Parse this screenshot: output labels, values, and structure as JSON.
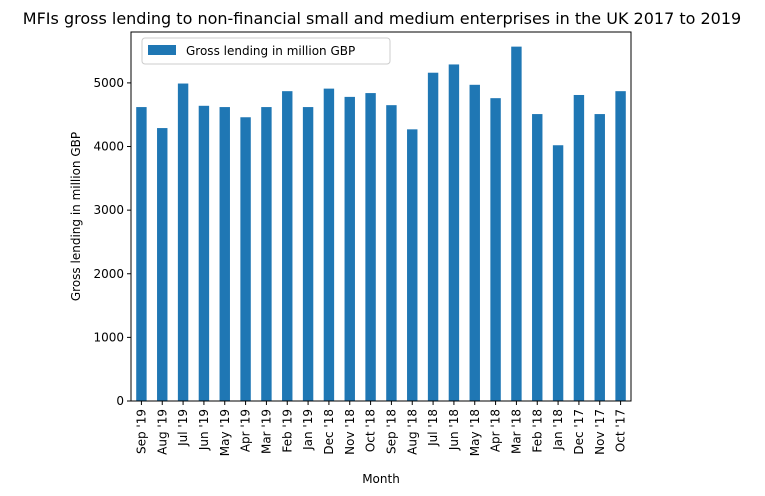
{
  "chart_data": {
    "type": "bar",
    "title": "MFIs gross lending to non-financial small and medium enterprises in the UK 2017 to 2019",
    "xlabel": "Month",
    "ylabel": "Gross lending in million GBP",
    "ylim": [
      0,
      5800
    ],
    "yticks": [
      "0",
      "1000",
      "2000",
      "3000",
      "4000",
      "5000"
    ],
    "legend_position": "top-left",
    "series": [
      {
        "name": "Gross lending in million GBP",
        "color": "#1f77b4",
        "values": [
          4620,
          4290,
          4990,
          4640,
          4620,
          4460,
          4620,
          4870,
          4620,
          4910,
          4780,
          4840,
          4650,
          4270,
          5160,
          5290,
          4970,
          4760,
          5570,
          4510,
          4020,
          4810,
          4510,
          4870
        ]
      }
    ],
    "categories": [
      "Sep '19",
      "Aug '19",
      "Jul '19",
      "Jun '19",
      "May '19",
      "Apr '19",
      "Mar '19",
      "Feb '19",
      "Jan '19",
      "Dec '18",
      "Nov '18",
      "Oct '18",
      "Sep '18",
      "Aug '18",
      "Jul '18",
      "Jun '18",
      "May '18",
      "Apr '18",
      "Mar '18",
      "Feb '18",
      "Jan '18",
      "Dec '17",
      "Nov '17",
      "Oct '17"
    ]
  }
}
